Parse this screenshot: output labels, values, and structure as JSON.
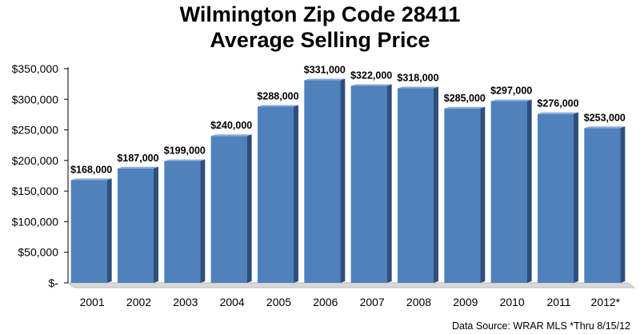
{
  "chart_data": {
    "type": "bar",
    "title_line1": "Wilmington Zip Code 28411",
    "title_line2": "Average Selling Price",
    "xlabel": "",
    "ylabel": "",
    "categories": [
      "2001",
      "2002",
      "2003",
      "2004",
      "2005",
      "2006",
      "2007",
      "2008",
      "2009",
      "2010",
      "2011",
      "2012*"
    ],
    "values": [
      168000,
      187000,
      199000,
      240000,
      288000,
      331000,
      322000,
      318000,
      285000,
      297000,
      276000,
      253000
    ],
    "data_labels": [
      "$168,000",
      "$187,000",
      "$199,000",
      "$240,000",
      "$288,000",
      "$331,000",
      "$322,000",
      "$318,000",
      "$285,000",
      "$297,000",
      "$276,000",
      "$253,000"
    ],
    "y_ticks": [
      0,
      50000,
      100000,
      150000,
      200000,
      250000,
      300000,
      350000
    ],
    "y_tick_labels": [
      "$-",
      "$50,000",
      "$100,000",
      "$150,000",
      "$200,000",
      "$250,000",
      "$300,000",
      "$350,000"
    ],
    "ylim": [
      0,
      350000
    ],
    "grid": false,
    "colors": {
      "bar_front": "#4f81bd",
      "bar_side": "#2e4f7e",
      "bar_top": "#8aaad6",
      "floor": "#d9d9d9"
    }
  },
  "footer": "Data Source: WRAR MLS  *Thru 8/15/12"
}
